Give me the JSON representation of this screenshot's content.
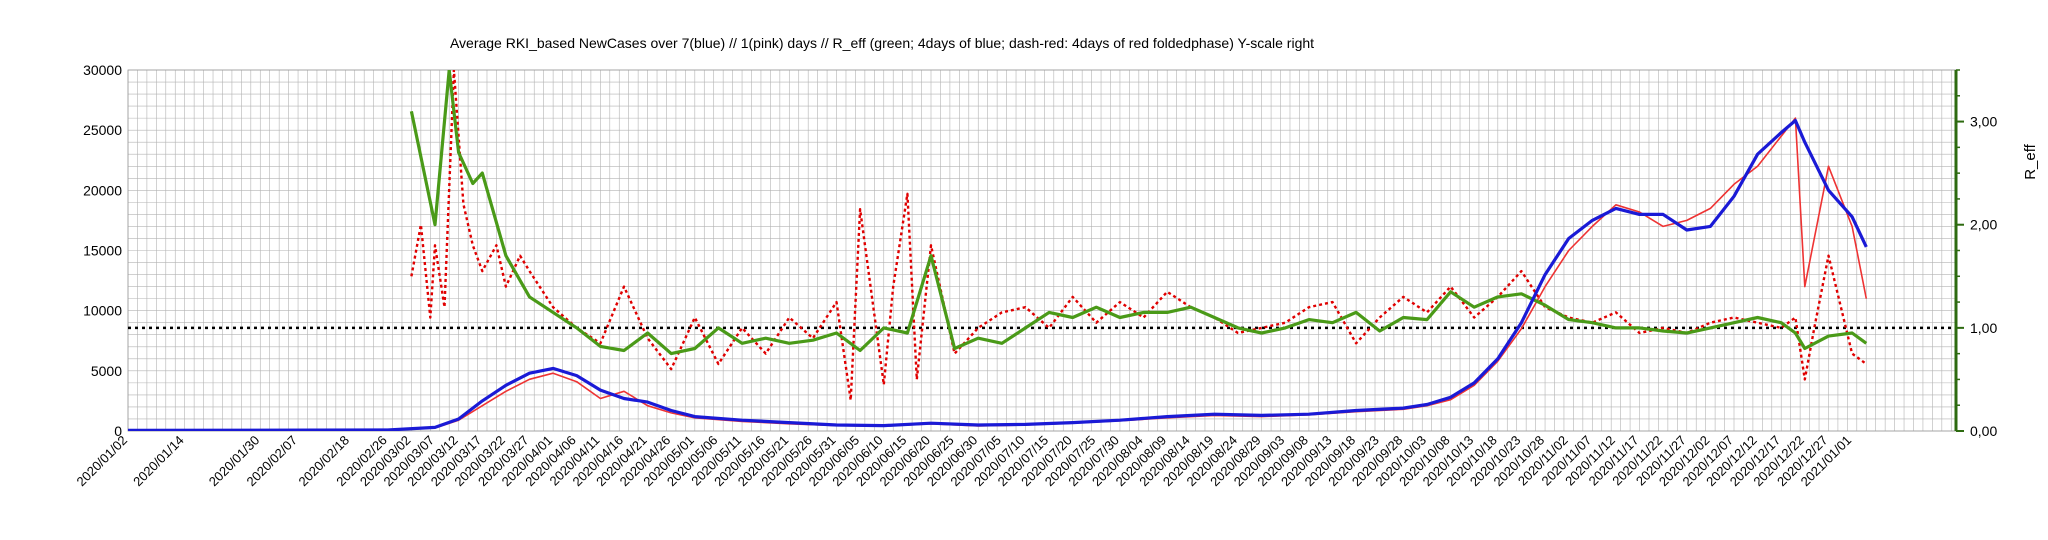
{
  "chart_data": {
    "type": "line",
    "title": "Average RKI_based NewCases over 7(blue) // 1(pink) days //  R_eff (green; 4days of blue; dash-red: 4days of red foldedphase) Y-scale right",
    "ylabel_right": "R_eff",
    "xlabel": "",
    "ylabel": "",
    "ylim": [
      0,
      30000
    ],
    "ylim_right": [
      0,
      3.5
    ],
    "y_ticks": [
      "0",
      "5000",
      "10000",
      "15000",
      "20000",
      "25000",
      "30000"
    ],
    "y_ticks_right": [
      "0,00",
      "1,00",
      "2,00",
      "3,00"
    ],
    "reference_line_right": 1.0,
    "grid": true,
    "x_tick_labels": [
      "2020/01/02",
      "2020/01/14",
      "2020/01/30",
      "2020/02/07",
      "2020/02/18",
      "2020/02/26",
      "2020/03/02",
      "2020/03/07",
      "2020/03/12",
      "2020/03/17",
      "2020/03/22",
      "2020/03/27",
      "2020/04/01",
      "2020/04/06",
      "2020/04/11",
      "2020/04/16",
      "2020/04/21",
      "2020/04/26",
      "2020/05/01",
      "2020/05/06",
      "2020/05/11",
      "2020/05/16",
      "2020/05/21",
      "2020/05/26",
      "2020/05/31",
      "2020/06/05",
      "2020/06/10",
      "2020/06/15",
      "2020/06/20",
      "2020/06/25",
      "2020/06/30",
      "2020/07/05",
      "2020/07/10",
      "2020/07/15",
      "2020/07/20",
      "2020/07/25",
      "2020/07/30",
      "2020/08/04",
      "2020/08/09",
      "2020/08/14",
      "2020/08/19",
      "2020/08/24",
      "2020/08/29",
      "2020/09/03",
      "2020/09/08",
      "2020/09/13",
      "2020/09/18",
      "2020/09/23",
      "2020/09/28",
      "2020/10/03",
      "2020/10/08",
      "2020/10/13",
      "2020/10/18",
      "2020/10/23",
      "2020/10/28",
      "2020/11/02",
      "2020/11/07",
      "2020/11/12",
      "2020/11/17",
      "2020/11/22",
      "2020/11/27",
      "2020/12/02",
      "2020/12/07",
      "2020/12/12",
      "2020/12/17",
      "2020/12/22",
      "2020/12/27",
      "2021/01/01"
    ],
    "colors": {
      "blue": "#1a1ad6",
      "pink": "#ee3333",
      "green": "#4a9a18",
      "dash_red": "#e00000",
      "reference": "#000000",
      "right_axis": "#2d6a10",
      "grid": "#b3b3b3"
    },
    "series": [
      {
        "axis": "left",
        "style": "solid",
        "color_key": "blue",
        "x": [
          "2020/01/02",
          "2020/02/26",
          "2020/03/07",
          "2020/03/12",
          "2020/03/17",
          "2020/03/22",
          "2020/03/27",
          "2020/04/01",
          "2020/04/06",
          "2020/04/11",
          "2020/04/16",
          "2020/04/21",
          "2020/04/26",
          "2020/05/01",
          "2020/05/11",
          "2020/05/21",
          "2020/05/31",
          "2020/06/10",
          "2020/06/20",
          "2020/06/30",
          "2020/07/10",
          "2020/07/20",
          "2020/07/30",
          "2020/08/09",
          "2020/08/19",
          "2020/08/29",
          "2020/09/08",
          "2020/09/18",
          "2020/09/28",
          "2020/10/03",
          "2020/10/08",
          "2020/10/13",
          "2020/10/18",
          "2020/10/23",
          "2020/10/28",
          "2020/11/02",
          "2020/11/07",
          "2020/11/12",
          "2020/11/17",
          "2020/11/22",
          "2020/11/27",
          "2020/12/02",
          "2020/12/07",
          "2020/12/12",
          "2020/12/17",
          "2020/12/20",
          "2020/12/22",
          "2020/12/27",
          "2021/01/01",
          "2021/01/04"
        ],
        "values": [
          50,
          80,
          300,
          1000,
          2500,
          3800,
          4800,
          5200,
          4600,
          3400,
          2700,
          2400,
          1700,
          1200,
          900,
          700,
          500,
          450,
          650,
          500,
          550,
          700,
          900,
          1200,
          1400,
          1300,
          1400,
          1700,
          1900,
          2200,
          2800,
          4000,
          6000,
          9000,
          13000,
          16000,
          17500,
          18500,
          18000,
          18000,
          16700,
          17000,
          19500,
          23000,
          24800,
          25800,
          24000,
          20000,
          17800,
          15300
        ]
      },
      {
        "axis": "left",
        "style": "solid",
        "color_key": "pink",
        "x": [
          "2020/01/02",
          "2020/02/26",
          "2020/03/07",
          "2020/03/12",
          "2020/03/17",
          "2020/03/22",
          "2020/03/27",
          "2020/04/01",
          "2020/04/06",
          "2020/04/11",
          "2020/04/16",
          "2020/04/21",
          "2020/04/26",
          "2020/05/01",
          "2020/05/11",
          "2020/05/21",
          "2020/05/31",
          "2020/06/10",
          "2020/06/20",
          "2020/06/30",
          "2020/07/10",
          "2020/07/20",
          "2020/07/30",
          "2020/08/09",
          "2020/08/19",
          "2020/08/29",
          "2020/09/08",
          "2020/09/18",
          "2020/09/28",
          "2020/10/03",
          "2020/10/08",
          "2020/10/13",
          "2020/10/18",
          "2020/10/23",
          "2020/10/28",
          "2020/11/02",
          "2020/11/07",
          "2020/11/12",
          "2020/11/17",
          "2020/11/22",
          "2020/11/27",
          "2020/12/02",
          "2020/12/07",
          "2020/12/12",
          "2020/12/17",
          "2020/12/20",
          "2020/12/22",
          "2020/12/27",
          "2021/01/01",
          "2021/01/04"
        ],
        "values": [
          30,
          60,
          250,
          900,
          2100,
          3300,
          4300,
          4800,
          4100,
          2700,
          3300,
          2100,
          1500,
          1100,
          800,
          600,
          450,
          400,
          600,
          420,
          500,
          650,
          850,
          1100,
          1300,
          1200,
          1350,
          1600,
          1800,
          2100,
          2600,
          3800,
          5800,
          8500,
          12000,
          15000,
          17000,
          18800,
          18200,
          17000,
          17500,
          18500,
          20500,
          22000,
          24500,
          26000,
          12000,
          22000,
          17000,
          11000
        ]
      },
      {
        "axis": "right",
        "style": "solid",
        "color_key": "green",
        "x": [
          "2020/03/02",
          "2020/03/07",
          "2020/03/10",
          "2020/03/12",
          "2020/03/15",
          "2020/03/17",
          "2020/03/22",
          "2020/03/27",
          "2020/04/01",
          "2020/04/06",
          "2020/04/11",
          "2020/04/16",
          "2020/04/21",
          "2020/04/26",
          "2020/05/01",
          "2020/05/06",
          "2020/05/11",
          "2020/05/16",
          "2020/05/21",
          "2020/05/26",
          "2020/05/31",
          "2020/06/05",
          "2020/06/10",
          "2020/06/15",
          "2020/06/20",
          "2020/06/25",
          "2020/06/30",
          "2020/07/05",
          "2020/07/10",
          "2020/07/15",
          "2020/07/20",
          "2020/07/25",
          "2020/07/30",
          "2020/08/04",
          "2020/08/09",
          "2020/08/14",
          "2020/08/19",
          "2020/08/24",
          "2020/08/29",
          "2020/09/03",
          "2020/09/08",
          "2020/09/13",
          "2020/09/18",
          "2020/09/23",
          "2020/09/28",
          "2020/10/03",
          "2020/10/08",
          "2020/10/13",
          "2020/10/18",
          "2020/10/23",
          "2020/10/28",
          "2020/11/02",
          "2020/11/07",
          "2020/11/12",
          "2020/11/17",
          "2020/11/22",
          "2020/11/27",
          "2020/12/02",
          "2020/12/07",
          "2020/12/12",
          "2020/12/17",
          "2020/12/20",
          "2020/12/22",
          "2020/12/27",
          "2021/01/01",
          "2021/01/04"
        ],
        "values": [
          3.1,
          2.0,
          3.5,
          2.7,
          2.4,
          2.5,
          1.7,
          1.3,
          1.15,
          1.0,
          0.82,
          0.78,
          0.95,
          0.75,
          0.8,
          1.0,
          0.85,
          0.9,
          0.85,
          0.88,
          0.95,
          0.78,
          1.0,
          0.95,
          1.7,
          0.8,
          0.9,
          0.85,
          1.0,
          1.15,
          1.1,
          1.2,
          1.1,
          1.15,
          1.15,
          1.2,
          1.1,
          1.0,
          0.95,
          1.0,
          1.08,
          1.05,
          1.15,
          0.97,
          1.1,
          1.08,
          1.35,
          1.2,
          1.3,
          1.33,
          1.22,
          1.08,
          1.05,
          1.0,
          1.0,
          0.97,
          0.95,
          1.0,
          1.05,
          1.1,
          1.05,
          0.95,
          0.8,
          0.92,
          0.95,
          0.85
        ]
      },
      {
        "axis": "right",
        "style": "dashed",
        "color_key": "dash_red",
        "x": [
          "2020/03/02",
          "2020/03/04",
          "2020/03/06",
          "2020/03/07",
          "2020/03/09",
          "2020/03/11",
          "2020/03/13",
          "2020/03/15",
          "2020/03/17",
          "2020/03/20",
          "2020/03/22",
          "2020/03/25",
          "2020/03/27",
          "2020/04/01",
          "2020/04/06",
          "2020/04/11",
          "2020/04/16",
          "2020/04/21",
          "2020/04/26",
          "2020/05/01",
          "2020/05/06",
          "2020/05/11",
          "2020/05/16",
          "2020/05/21",
          "2020/05/26",
          "2020/05/31",
          "2020/06/03",
          "2020/06/05",
          "2020/06/10",
          "2020/06/12",
          "2020/06/15",
          "2020/06/17",
          "2020/06/20",
          "2020/06/25",
          "2020/06/30",
          "2020/07/05",
          "2020/07/10",
          "2020/07/15",
          "2020/07/20",
          "2020/07/25",
          "2020/07/30",
          "2020/08/04",
          "2020/08/09",
          "2020/08/14",
          "2020/08/19",
          "2020/08/24",
          "2020/08/29",
          "2020/09/03",
          "2020/09/08",
          "2020/09/13",
          "2020/09/18",
          "2020/09/23",
          "2020/09/28",
          "2020/10/03",
          "2020/10/08",
          "2020/10/13",
          "2020/10/18",
          "2020/10/23",
          "2020/10/28",
          "2020/11/02",
          "2020/11/07",
          "2020/11/12",
          "2020/11/17",
          "2020/11/22",
          "2020/11/27",
          "2020/12/02",
          "2020/12/07",
          "2020/12/12",
          "2020/12/17",
          "2020/12/20",
          "2020/12/22",
          "2020/12/24",
          "2020/12/27",
          "2021/01/01",
          "2021/01/04"
        ],
        "values": [
          1.5,
          2.0,
          1.1,
          1.8,
          1.2,
          3.5,
          2.2,
          1.8,
          1.55,
          1.8,
          1.4,
          1.7,
          1.55,
          1.2,
          1.0,
          0.85,
          1.4,
          0.9,
          0.6,
          1.1,
          0.65,
          1.0,
          0.75,
          1.1,
          0.9,
          1.25,
          0.3,
          2.15,
          0.45,
          1.4,
          2.3,
          0.5,
          1.8,
          0.75,
          1.0,
          1.15,
          1.2,
          1.0,
          1.3,
          1.05,
          1.25,
          1.1,
          1.35,
          1.2,
          1.1,
          0.95,
          1.0,
          1.05,
          1.2,
          1.25,
          0.85,
          1.1,
          1.3,
          1.15,
          1.4,
          1.1,
          1.3,
          1.55,
          1.2,
          1.1,
          1.05,
          1.15,
          0.95,
          1.0,
          0.95,
          1.05,
          1.1,
          1.05,
          1.0,
          1.1,
          0.5,
          1.0,
          1.7,
          0.75,
          0.65
        ]
      }
    ]
  }
}
